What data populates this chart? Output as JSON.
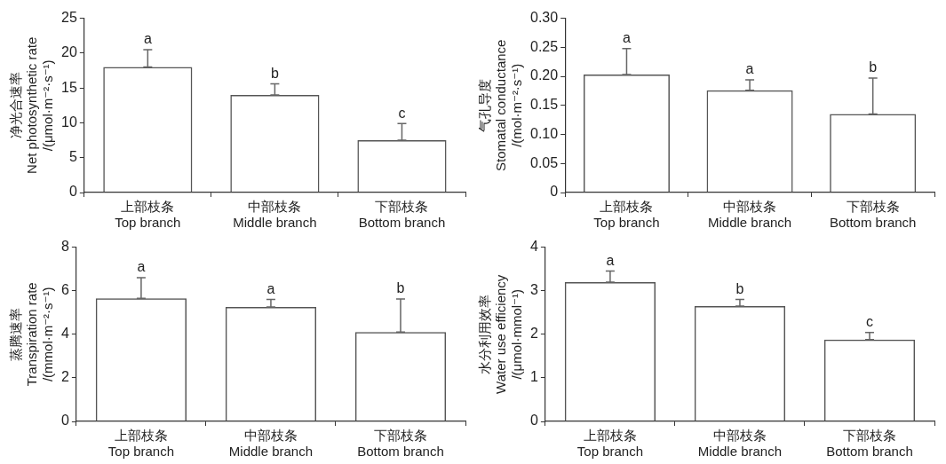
{
  "chart_data": [
    {
      "type": "bar",
      "categories": [
        "上部枝条\nTop branch",
        "中部枝条\nMiddle branch",
        "下部枝条\nBottom branch"
      ],
      "ylabel": "净光合速率\nNet photosynthetic rate\n/(μmol·m⁻²·s⁻¹)",
      "values": [
        18.0,
        14.0,
        7.5
      ],
      "errors": [
        [
          18.0,
          20.5
        ],
        [
          14.0,
          15.6
        ],
        [
          7.5,
          9.9
        ]
      ],
      "color": "#555555",
      "ylim": [
        0,
        25
      ],
      "yticks": [
        0,
        5,
        10,
        15,
        20,
        25
      ],
      "grid": false,
      "legend": false,
      "annotations": [
        {
          "text": "a",
          "x": "上部枝条\nTop branch",
          "y": 20.5
        },
        {
          "text": "b",
          "x": "中部枝条\nMiddle branch",
          "y": 15.6
        },
        {
          "text": "c",
          "x": "下部枝条\nBottom branch",
          "y": 9.9
        }
      ]
    },
    {
      "type": "bar",
      "categories": [
        "上部枝条\nTop branch",
        "中部枝条\nMiddle branch",
        "下部枝条\nBottom branch"
      ],
      "ylabel": "气孔导度\nStomatal conductance\n/(mol·m⁻²·s⁻¹)",
      "values": [
        0.203,
        0.176,
        0.135
      ],
      "errors": [
        [
          0.203,
          0.248
        ],
        [
          0.176,
          0.194
        ],
        [
          0.135,
          0.197
        ]
      ],
      "color": "#555555",
      "ylim": [
        0,
        0.3
      ],
      "yticks": [
        {
          "value": 0,
          "label": "0"
        },
        {
          "value": 0.05,
          "label": "0.05"
        },
        {
          "value": 0.1,
          "label": "0.10"
        },
        {
          "value": 0.15,
          "label": "0.15"
        },
        {
          "value": 0.2,
          "label": "0.20"
        },
        {
          "value": 0.25,
          "label": "0.25"
        },
        {
          "value": 0.3,
          "label": "0.30"
        }
      ],
      "grid": false,
      "legend": false,
      "annotations": [
        {
          "text": "a",
          "x": "上部枝条\nTop branch",
          "y": 0.248
        },
        {
          "text": "a",
          "x": "中部枝条\nMiddle branch",
          "y": 0.194
        },
        {
          "text": "b",
          "x": "下部枝条\nBottom branch",
          "y": 0.197
        }
      ]
    },
    {
      "type": "bar",
      "categories": [
        "上部枝条\nTop branch",
        "中部枝条\nMiddle branch",
        "下部枝条\nBottom branch"
      ],
      "ylabel": "蒸腾速率\nTranspiration rate\n/(mmol·m⁻²·s⁻¹)",
      "values": [
        5.65,
        5.25,
        4.1
      ],
      "errors": [
        [
          5.65,
          6.6
        ],
        [
          5.25,
          5.6
        ],
        [
          4.1,
          5.62
        ]
      ],
      "color": "#555555",
      "ylim": [
        0,
        8
      ],
      "yticks": [
        0,
        2,
        4,
        6,
        8
      ],
      "grid": false,
      "legend": false,
      "annotations": [
        {
          "text": "a",
          "x": "上部枝条\nTop branch",
          "y": 6.6
        },
        {
          "text": "a",
          "x": "中部枝条\nMiddle branch",
          "y": 5.6
        },
        {
          "text": "b",
          "x": "下部枝条\nBottom branch",
          "y": 5.62
        }
      ]
    },
    {
      "type": "bar",
      "categories": [
        "上部枝条\nTop branch",
        "中部枝条\nMiddle branch",
        "下部枝条\nBottom branch"
      ],
      "ylabel": "水分利用效率\nWater use efficiency\n/(μmol·mmol⁻¹)",
      "values": [
        3.2,
        2.65,
        1.88
      ],
      "errors": [
        [
          3.2,
          3.45
        ],
        [
          2.65,
          2.8
        ],
        [
          1.88,
          2.04
        ]
      ],
      "color": "#555555",
      "ylim": [
        0,
        4
      ],
      "yticks": [
        0,
        1,
        2,
        3,
        4
      ],
      "grid": false,
      "legend": false,
      "annotations": [
        {
          "text": "a",
          "x": "上部枝条\nTop branch",
          "y": 3.45
        },
        {
          "text": "b",
          "x": "中部枝条\nMiddle branch",
          "y": 2.8
        },
        {
          "text": "c",
          "x": "下部枝条\nBottom branch",
          "y": 2.04
        }
      ]
    }
  ]
}
